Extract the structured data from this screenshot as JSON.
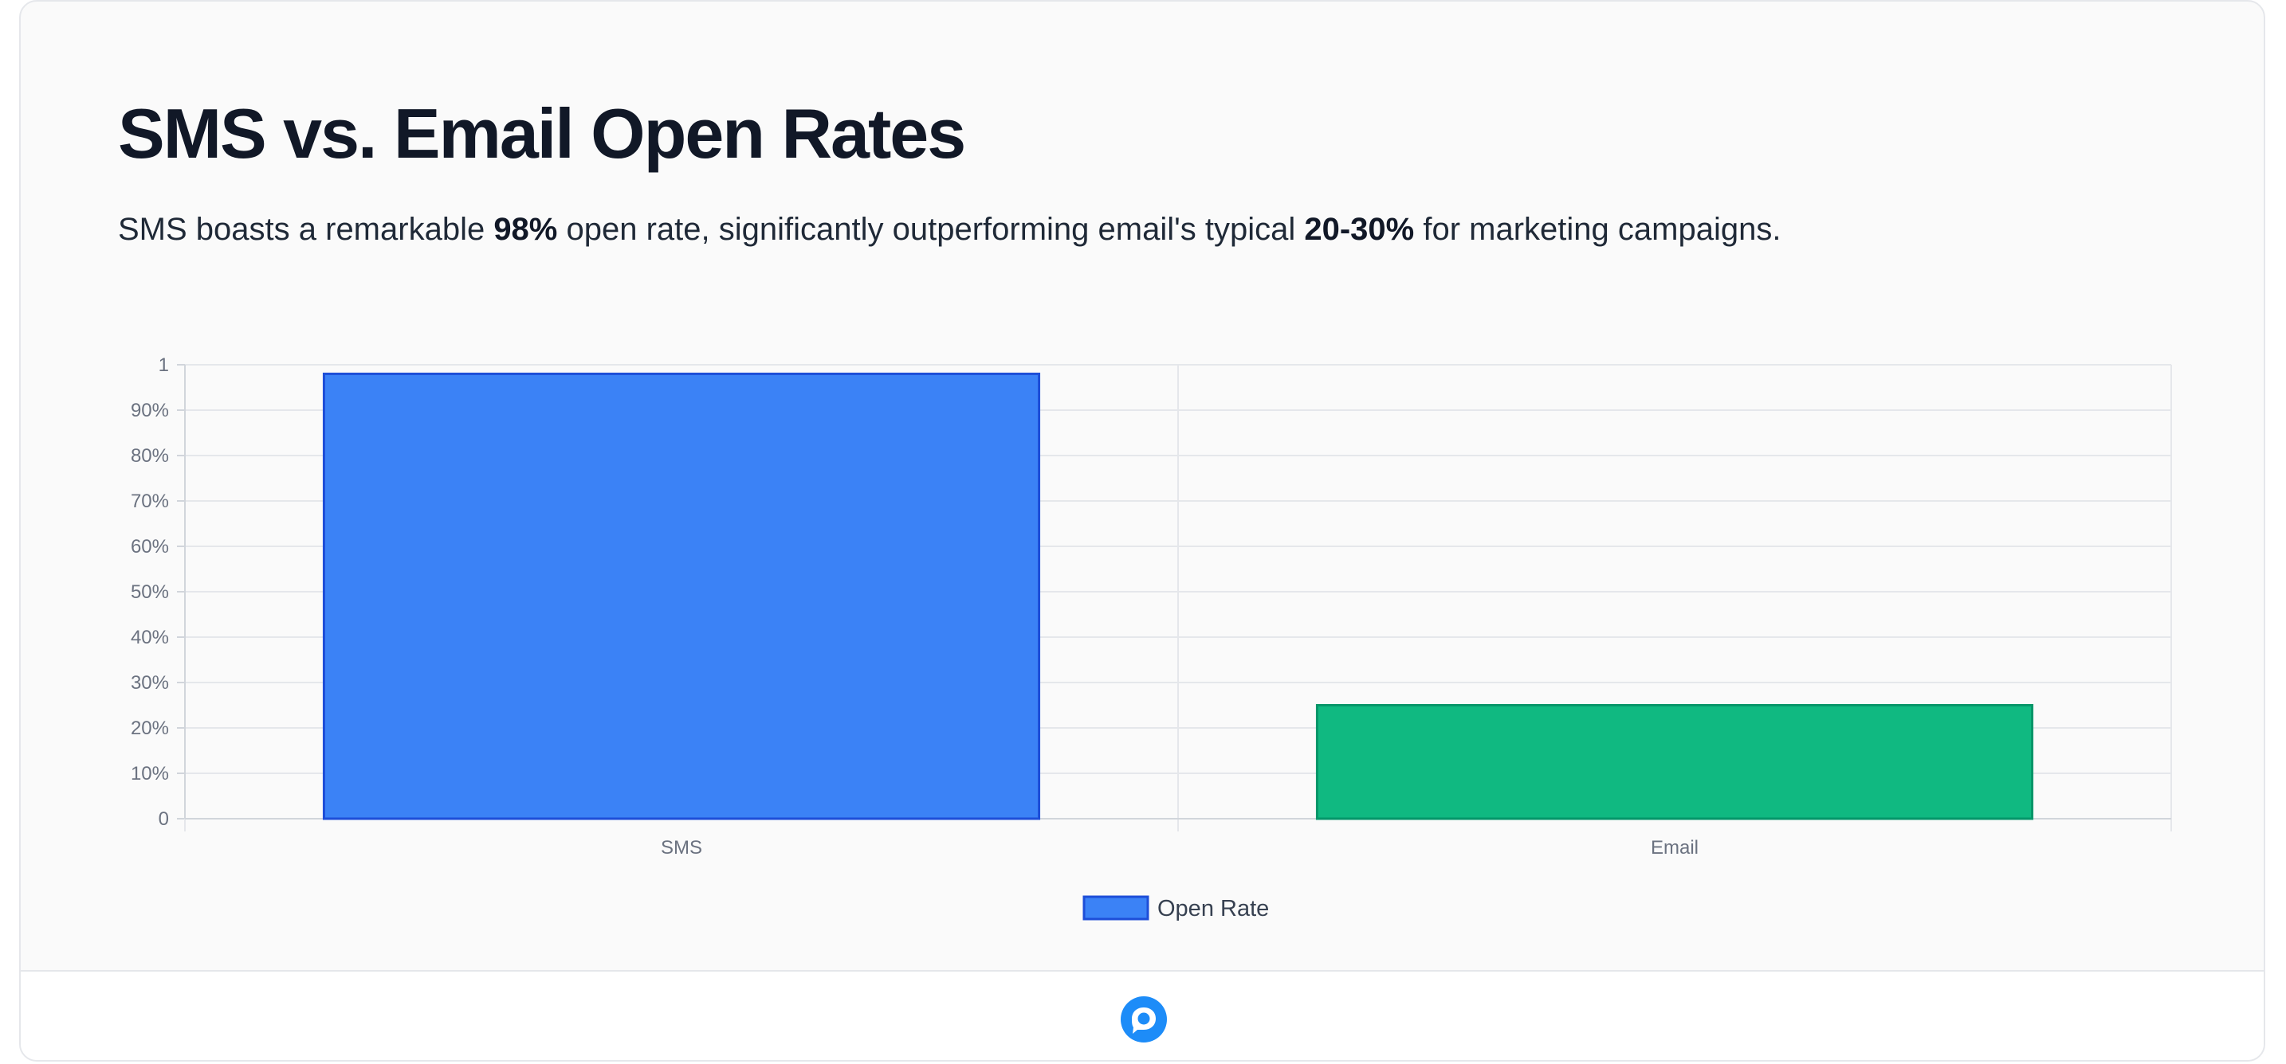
{
  "header": {
    "title": "SMS vs. Email Open Rates",
    "subtitle_parts": [
      "SMS boasts a remarkable ",
      "98%",
      " open rate, significantly outperforming email's typical ",
      "20-30%",
      " for marketing campaigns."
    ]
  },
  "chart_data": {
    "type": "bar",
    "categories": [
      "SMS",
      "Email"
    ],
    "series": [
      {
        "name": "Open Rate",
        "values": [
          0.98,
          0.25
        ]
      }
    ],
    "bar_colors": [
      "#3b82f6",
      "#10b981"
    ],
    "bar_border_colors": [
      "#1d4ed8",
      "#059669"
    ],
    "ylim": [
      0,
      1
    ],
    "y_ticks": [
      0,
      0.1,
      0.2,
      0.3,
      0.4,
      0.5,
      0.6,
      0.7,
      0.8,
      0.9,
      1
    ],
    "y_tick_labels": [
      "0",
      "10%",
      "20%",
      "30%",
      "40%",
      "50%",
      "60%",
      "70%",
      "80%",
      "90%",
      "1"
    ],
    "grid": true,
    "legend_position": "bottom",
    "legend_swatch_color": "#3b82f6",
    "legend_swatch_border": "#1d4ed8"
  },
  "footer": {
    "logo_icon": "chat-bubble-logo-icon",
    "logo_color": "#1d8cf8"
  }
}
